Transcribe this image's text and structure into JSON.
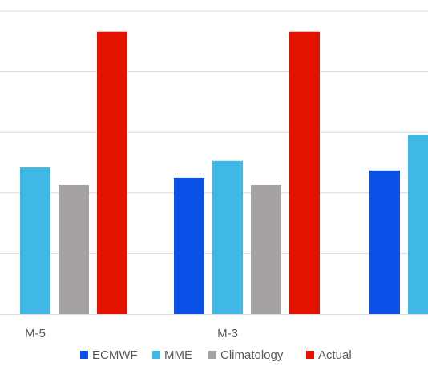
{
  "chart_data": {
    "type": "bar",
    "categories": [
      "M-5",
      "M-3",
      ""
    ],
    "series": [
      {
        "name": "ECMWF",
        "color": "#0A4FE6",
        "values": [
          null,
          22.5,
          23.7
        ]
      },
      {
        "name": "MME",
        "color": "#40B8E6",
        "values": [
          24.2,
          25.3,
          29.6
        ]
      },
      {
        "name": "Climatology",
        "color": "#A6A2A2",
        "values": [
          21.3,
          21.3,
          null
        ]
      },
      {
        "name": "Actual",
        "color": "#E31300",
        "values": [
          46.6,
          46.6,
          null
        ]
      }
    ],
    "ylim": [
      0,
      50
    ],
    "grid": true,
    "legend": "bottom"
  }
}
